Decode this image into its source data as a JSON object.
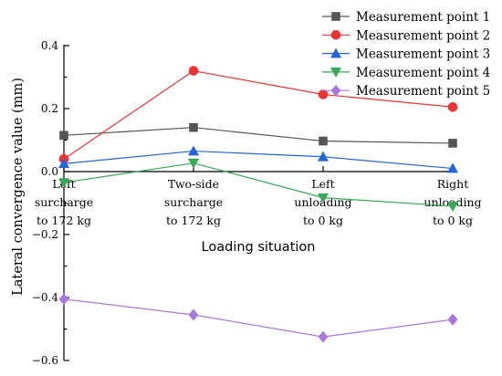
{
  "chart_data": {
    "type": "line",
    "categories": [
      [
        "Left",
        "surcharge",
        "to 172 kg"
      ],
      [
        "Two-side",
        "surcharge",
        "to 172 kg"
      ],
      [
        "Left",
        "unloading",
        "to 0 kg"
      ],
      [
        "Right",
        "unloading",
        "to 0 kg"
      ]
    ],
    "series": [
      {
        "name": "Measurement point 1",
        "values": [
          0.115,
          0.14,
          0.097,
          0.09
        ],
        "color": "#555555",
        "marker": "square"
      },
      {
        "name": "Measurement point 2",
        "values": [
          0.04,
          0.32,
          0.245,
          0.205
        ],
        "color": "#ee3333",
        "marker": "circle"
      },
      {
        "name": "Measurement point 3",
        "values": [
          0.025,
          0.065,
          0.047,
          0.01
        ],
        "color": "#2266dd",
        "marker": "triangle-up"
      },
      {
        "name": "Measurement point 4",
        "values": [
          -0.035,
          0.027,
          -0.083,
          -0.11
        ],
        "color": "#33aa55",
        "marker": "triangle-down"
      },
      {
        "name": "Measurement point 5",
        "values": [
          -0.405,
          -0.455,
          -0.525,
          -0.47
        ],
        "color": "#aa77dd",
        "marker": "diamond"
      }
    ],
    "xlabel": "Loading situation",
    "ylabel": "Lateral convergence value (mm)",
    "ylim": [
      -0.6,
      0.4
    ],
    "yticks": [
      -0.6,
      -0.4,
      -0.2,
      0.0,
      0.2,
      0.4
    ],
    "ytick_labels": [
      "−0.6",
      "−0.4",
      "−0.2",
      "0.0",
      "0.2",
      "0.4"
    ],
    "grid": false,
    "legend_position": "top-right"
  }
}
